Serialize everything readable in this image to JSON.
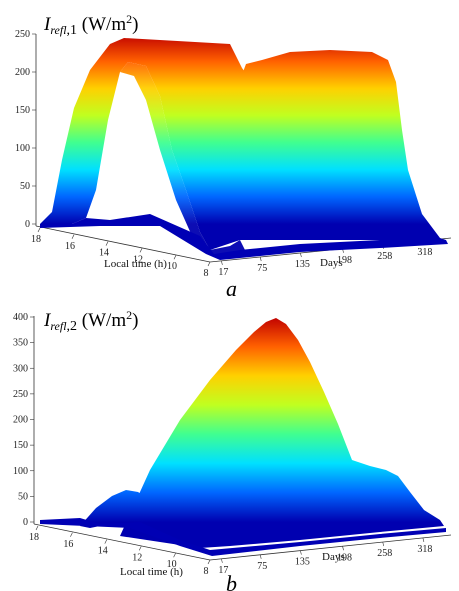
{
  "chart_data": [
    {
      "type": "surface",
      "panel_label": "a",
      "title_main": "I",
      "title_sub": "refl",
      "title_index": ",1",
      "title_unit_pre": " (W/m",
      "title_unit_exp": "2",
      "title_unit_post": ")",
      "xlabel": "Local time (h)",
      "ylabel": "Days",
      "x_ticks": [
        "18",
        "16",
        "14",
        "12",
        "10",
        "8"
      ],
      "x_ticks_values": [
        18,
        16,
        14,
        12,
        10,
        8
      ],
      "y_ticks": [
        "17",
        "75",
        "135",
        "198",
        "258",
        "318"
      ],
      "y_ticks_values": [
        17,
        75,
        135,
        198,
        258,
        318
      ],
      "z_ticks": [
        "0",
        "50",
        "100",
        "150",
        "200",
        "250"
      ],
      "z_ticks_values": [
        0,
        50,
        100,
        150,
        200,
        250
      ],
      "zlim": [
        0,
        250
      ],
      "colormap": "jet",
      "colormap_stops": [
        "#0000b0",
        "#0066ff",
        "#00e0ff",
        "#40ff90",
        "#c0ff20",
        "#ffd000",
        "#ff6000",
        "#c00000"
      ],
      "peaks": [
        {
          "local_time": 12,
          "day": 17,
          "value": 240
        },
        {
          "local_time": 12,
          "day": 198,
          "value": 245
        }
      ]
    },
    {
      "type": "surface",
      "panel_label": "b",
      "title_main": "I",
      "title_sub": "refl",
      "title_index": ",2",
      "title_unit_pre": " (W/m",
      "title_unit_exp": "2",
      "title_unit_post": ")",
      "xlabel": "Local time (h)",
      "ylabel": "Days",
      "x_ticks": [
        "18",
        "16",
        "14",
        "12",
        "10",
        "8"
      ],
      "x_ticks_values": [
        18,
        16,
        14,
        12,
        10,
        8
      ],
      "y_ticks": [
        "17",
        "75",
        "135",
        "198",
        "258",
        "318"
      ],
      "y_ticks_values": [
        17,
        75,
        135,
        198,
        258,
        318
      ],
      "z_ticks": [
        "0",
        "50",
        "100",
        "150",
        "200",
        "250",
        "300",
        "350",
        "400"
      ],
      "z_ticks_values": [
        0,
        50,
        100,
        150,
        200,
        250,
        300,
        350,
        400
      ],
      "zlim": [
        0,
        400
      ],
      "colormap": "jet",
      "colormap_stops": [
        "#0000b0",
        "#0066ff",
        "#00e0ff",
        "#40ff90",
        "#c0ff20",
        "#ffd000",
        "#ff6000",
        "#c00000"
      ],
      "peaks": [
        {
          "local_time": 12,
          "day": 135,
          "value": 390
        }
      ]
    }
  ]
}
